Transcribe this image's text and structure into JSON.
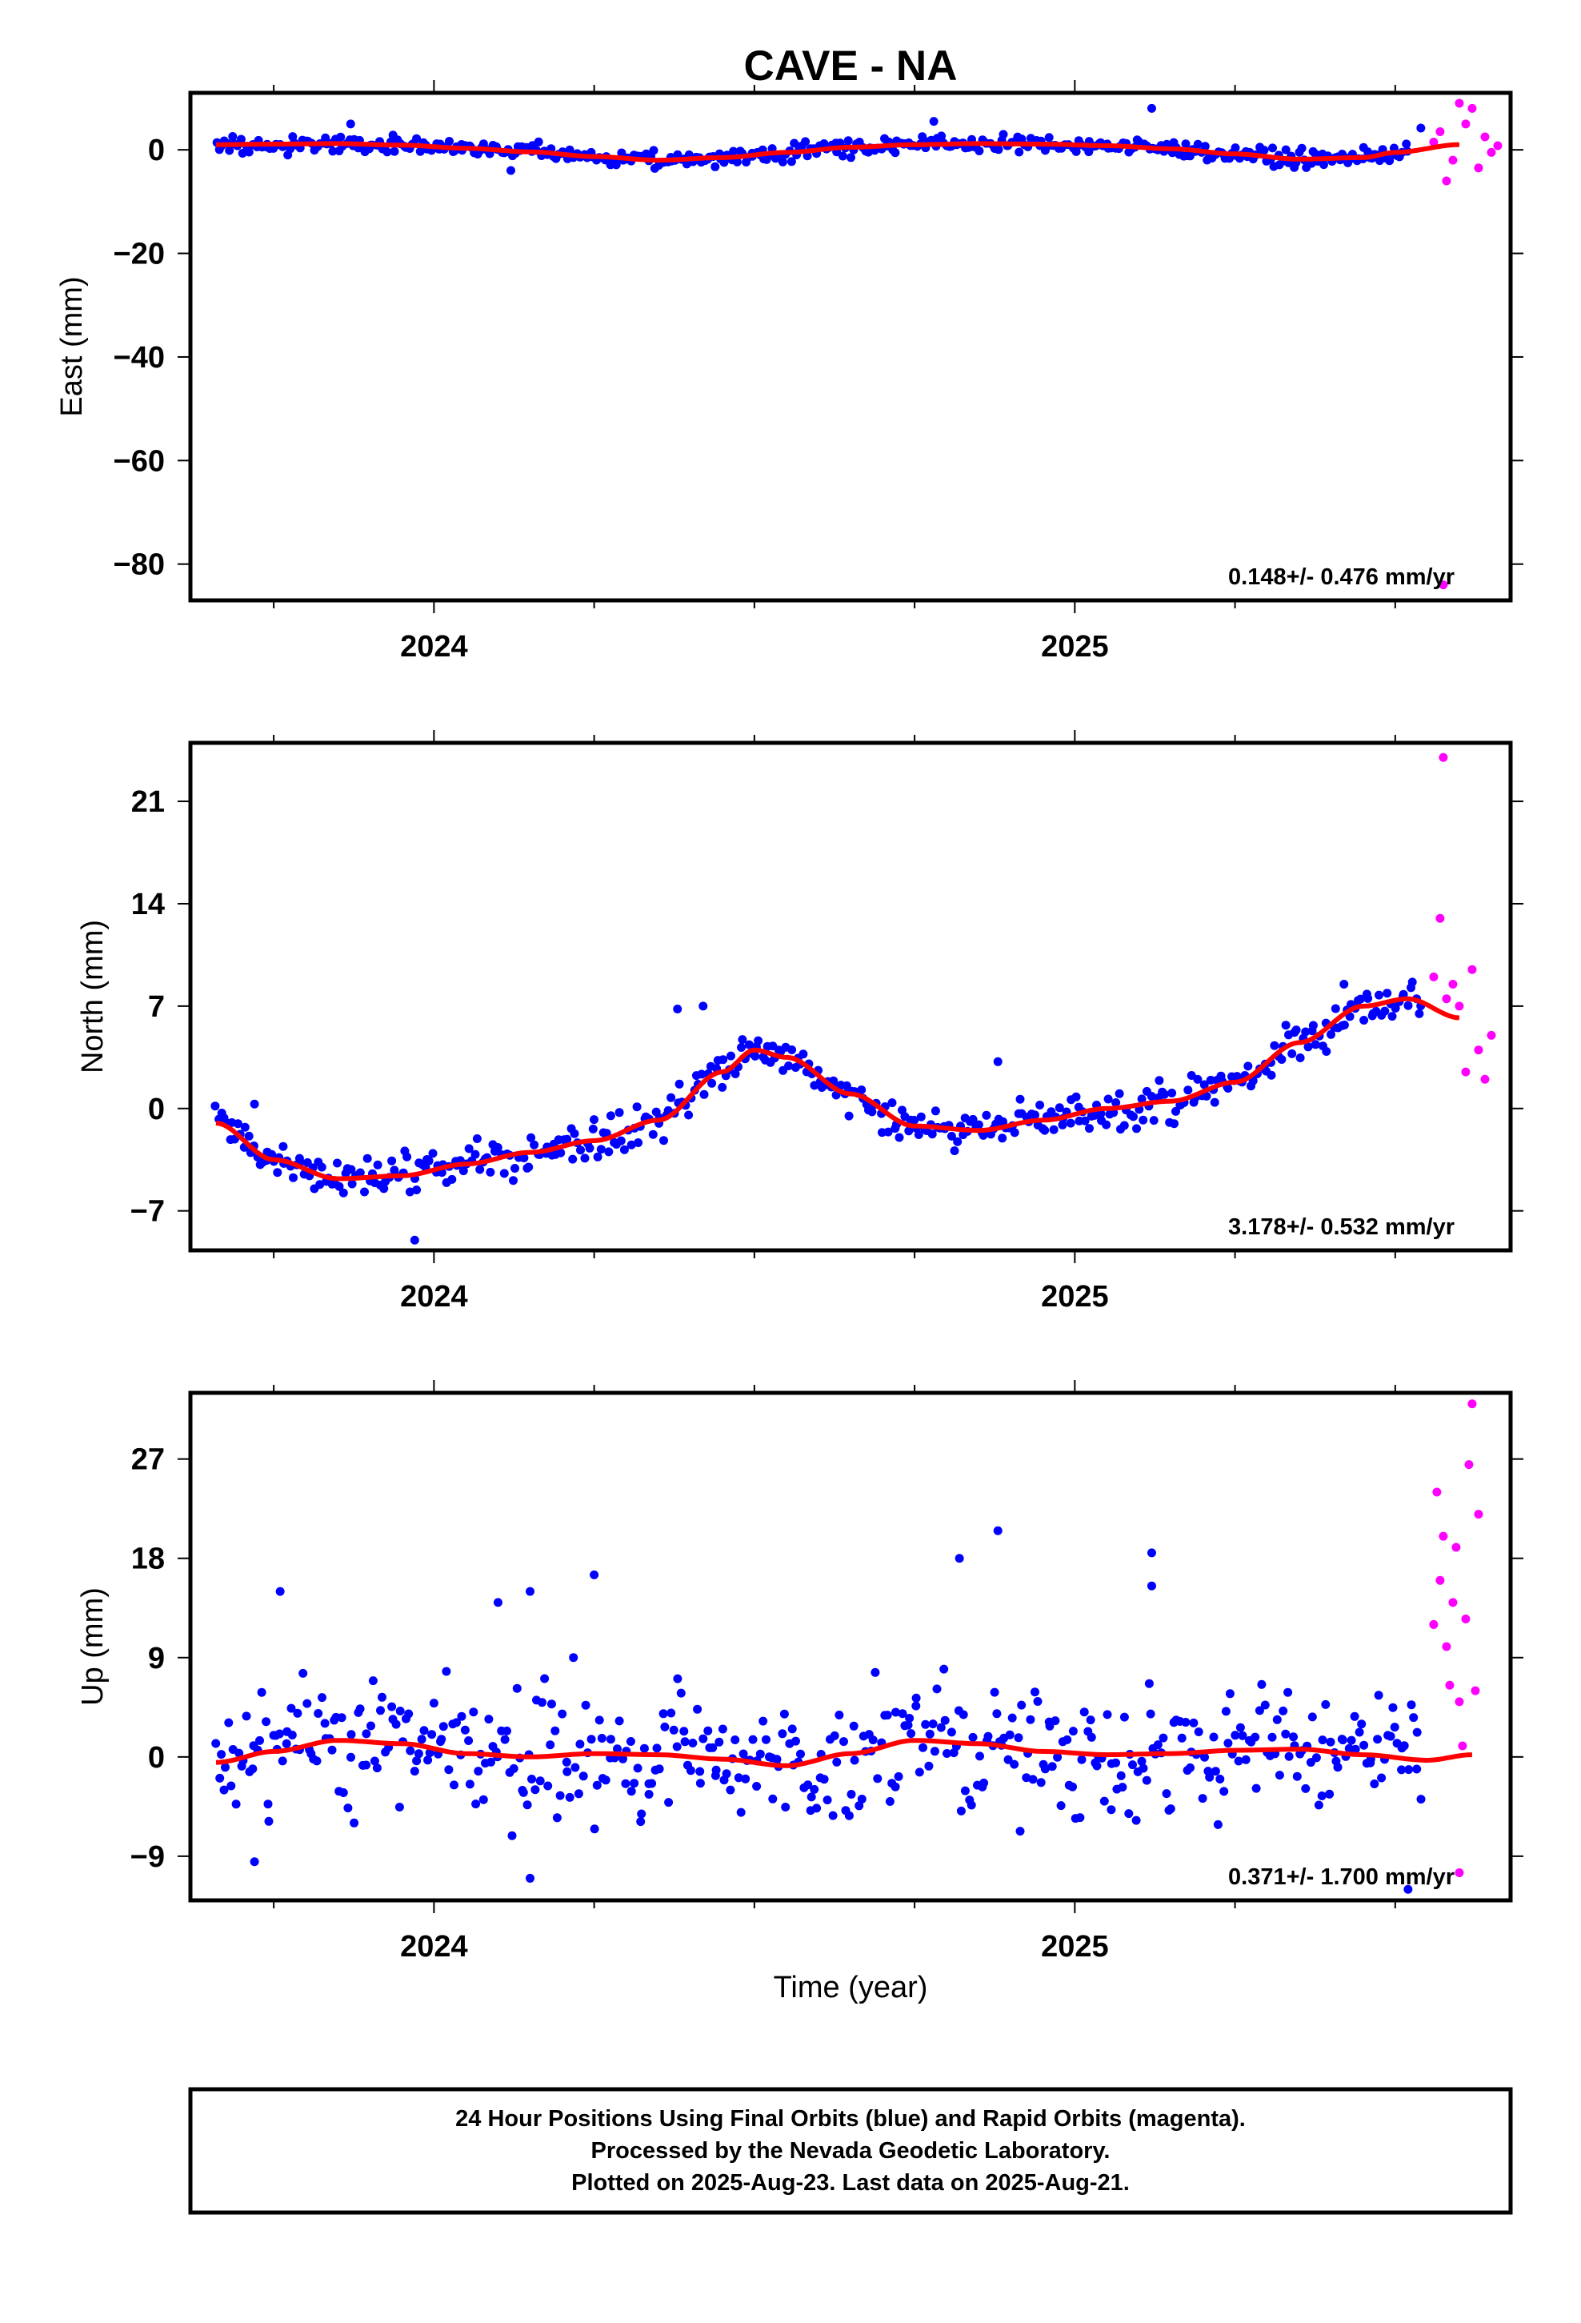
{
  "title": "CAVE - NA",
  "xlabel": "Time (year)",
  "footer": {
    "line1": "24 Hour Positions Using Final Orbits (blue) and Rapid Orbits (magenta).",
    "line2": "Processed by the Nevada Geodetic Laboratory.",
    "line3": "Plotted on 2025-Aug-23. Last data on 2025-Aug-21."
  },
  "colors": {
    "final": "#0000ff",
    "rapid": "#ff00ff",
    "fit": "#ff0000"
  },
  "chart_data": [
    {
      "type": "scatter",
      "component": "east",
      "ylabel": "East (mm)",
      "rate": "0.148+/- 0.476 mm/yr",
      "xlim": [
        2023.62,
        2025.68
      ],
      "ylim": [
        -87,
        11
      ],
      "x_major_ticks": [
        2024,
        2025
      ],
      "x_minor_ticks": [
        2023.75,
        2024.25,
        2024.5,
        2024.75,
        2025.25,
        2025.5
      ],
      "y_ticks": [
        0,
        -20,
        -40,
        -60,
        -80
      ],
      "y_tick_labels": [
        "0",
        "−20",
        "−40",
        "−60",
        "−80"
      ],
      "trend": {
        "x": [
          2023.66,
          2023.75,
          2023.85,
          2023.95,
          2024.05,
          2024.15,
          2024.25,
          2024.35,
          2024.45,
          2024.55,
          2024.65,
          2024.75,
          2024.85,
          2024.95,
          2025.05,
          2025.15,
          2025.25,
          2025.35,
          2025.45,
          2025.5,
          2025.6
        ],
        "y": [
          1.0,
          1.1,
          1.2,
          0.9,
          0.3,
          -0.4,
          -1.3,
          -2.0,
          -1.5,
          -0.5,
          0.5,
          1.0,
          1.2,
          1.1,
          0.8,
          0.2,
          -0.8,
          -1.8,
          -1.5,
          -0.5,
          1.0
        ]
      },
      "final_noise": 1.1,
      "final_count": 440,
      "final_range": [
        2023.66,
        2025.52
      ],
      "final_extra": [
        {
          "x": 2024.78,
          "y": 5.5
        },
        {
          "x": 2025.12,
          "y": 8.0
        },
        {
          "x": 2025.54,
          "y": 4.2
        },
        {
          "x": 2024.12,
          "y": -4.0
        },
        {
          "x": 2023.87,
          "y": 5.0
        }
      ],
      "rapid": [
        {
          "x": 2025.56,
          "y": 1.5
        },
        {
          "x": 2025.57,
          "y": 3.5
        },
        {
          "x": 2025.58,
          "y": -6.0
        },
        {
          "x": 2025.59,
          "y": -2.0
        },
        {
          "x": 2025.6,
          "y": 9.0
        },
        {
          "x": 2025.61,
          "y": 5.0
        },
        {
          "x": 2025.62,
          "y": 8.0
        },
        {
          "x": 2025.63,
          "y": -3.5
        },
        {
          "x": 2025.64,
          "y": 2.5
        },
        {
          "x": 2025.65,
          "y": -0.5
        },
        {
          "x": 2025.66,
          "y": 0.8
        },
        {
          "x": 2025.575,
          "y": -84.0
        }
      ]
    },
    {
      "type": "scatter",
      "component": "north",
      "ylabel": "North (mm)",
      "rate": "3.178+/- 0.532 mm/yr",
      "xlim": [
        2023.62,
        2025.68
      ],
      "ylim": [
        -9.7,
        25
      ],
      "x_major_ticks": [
        2024,
        2025
      ],
      "x_minor_ticks": [
        2023.75,
        2024.25,
        2024.5,
        2024.75,
        2025.25,
        2025.5
      ],
      "y_ticks": [
        21,
        14,
        7,
        0,
        -7
      ],
      "y_tick_labels": [
        "21",
        "14",
        "7",
        "0",
        "−7"
      ],
      "trend": {
        "x": [
          2023.66,
          2023.75,
          2023.85,
          2023.95,
          2024.05,
          2024.15,
          2024.25,
          2024.35,
          2024.45,
          2024.5,
          2024.55,
          2024.65,
          2024.75,
          2024.85,
          2024.95,
          2025.05,
          2025.15,
          2025.25,
          2025.35,
          2025.45,
          2025.52,
          2025.6
        ],
        "y": [
          -1.0,
          -3.5,
          -4.8,
          -4.6,
          -3.8,
          -3.0,
          -2.2,
          -0.8,
          2.5,
          4.0,
          3.5,
          1.0,
          -1.2,
          -1.5,
          -0.8,
          0.0,
          0.5,
          1.8,
          4.5,
          7.0,
          7.5,
          6.2
        ]
      },
      "final_noise": 1.0,
      "final_count": 440,
      "final_range": [
        2023.66,
        2025.54
      ],
      "final_extra": [
        {
          "x": 2024.38,
          "y": 6.8
        },
        {
          "x": 2024.42,
          "y": 7.0
        },
        {
          "x": 2023.97,
          "y": -9.0
        },
        {
          "x": 2024.88,
          "y": 3.2
        },
        {
          "x": 2023.72,
          "y": 0.3
        },
        {
          "x": 2025.42,
          "y": 8.5
        }
      ],
      "rapid": [
        {
          "x": 2025.56,
          "y": 9.0
        },
        {
          "x": 2025.57,
          "y": 13.0
        },
        {
          "x": 2025.575,
          "y": 24.0
        },
        {
          "x": 2025.58,
          "y": 7.5
        },
        {
          "x": 2025.59,
          "y": 8.5
        },
        {
          "x": 2025.6,
          "y": 7.0
        },
        {
          "x": 2025.61,
          "y": 2.5
        },
        {
          "x": 2025.62,
          "y": 9.5
        },
        {
          "x": 2025.63,
          "y": 4.0
        },
        {
          "x": 2025.64,
          "y": 2.0
        },
        {
          "x": 2025.65,
          "y": 5.0
        }
      ]
    },
    {
      "type": "scatter",
      "component": "up",
      "ylabel": "Up (mm)",
      "rate": "0.371+/- 1.700 mm/yr",
      "xlim": [
        2023.62,
        2025.68
      ],
      "ylim": [
        -13,
        33
      ],
      "x_major_ticks": [
        2024,
        2025
      ],
      "x_minor_ticks": [
        2023.75,
        2024.25,
        2024.5,
        2024.75,
        2025.25,
        2025.5
      ],
      "y_ticks": [
        27,
        18,
        9,
        0,
        -9
      ],
      "y_tick_labels": [
        "27",
        "18",
        "9",
        "0",
        "−9"
      ],
      "trend": {
        "x": [
          2023.66,
          2023.75,
          2023.85,
          2023.95,
          2024.05,
          2024.15,
          2024.25,
          2024.35,
          2024.45,
          2024.55,
          2024.65,
          2024.75,
          2024.85,
          2024.95,
          2025.05,
          2025.15,
          2025.25,
          2025.35,
          2025.45,
          2025.55,
          2025.62
        ],
        "y": [
          -0.5,
          0.5,
          1.5,
          1.2,
          0.3,
          0.0,
          0.3,
          0.2,
          -0.2,
          -0.8,
          0.3,
          1.5,
          1.2,
          0.5,
          0.2,
          0.3,
          0.6,
          0.7,
          0.2,
          -0.3,
          0.2
        ]
      },
      "final_noise": 4.3,
      "final_count": 470,
      "final_range": [
        2023.66,
        2025.54
      ],
      "final_extra": [
        {
          "x": 2023.76,
          "y": 15.0
        },
        {
          "x": 2024.1,
          "y": 14.0
        },
        {
          "x": 2024.15,
          "y": 15.0
        },
        {
          "x": 2024.25,
          "y": 16.5
        },
        {
          "x": 2024.82,
          "y": 18.0
        },
        {
          "x": 2024.88,
          "y": 20.5
        },
        {
          "x": 2025.12,
          "y": 18.5
        },
        {
          "x": 2025.12,
          "y": 15.5
        },
        {
          "x": 2024.15,
          "y": -11.0
        },
        {
          "x": 2023.72,
          "y": -9.5
        },
        {
          "x": 2025.52,
          "y": -12.0
        }
      ],
      "rapid": [
        {
          "x": 2025.56,
          "y": 12.0
        },
        {
          "x": 2025.565,
          "y": 24.0
        },
        {
          "x": 2025.57,
          "y": 16.0
        },
        {
          "x": 2025.575,
          "y": 20.0
        },
        {
          "x": 2025.58,
          "y": 10.0
        },
        {
          "x": 2025.585,
          "y": 6.5
        },
        {
          "x": 2025.59,
          "y": 14.0
        },
        {
          "x": 2025.595,
          "y": 19.0
        },
        {
          "x": 2025.6,
          "y": -10.5
        },
        {
          "x": 2025.605,
          "y": 1.0
        },
        {
          "x": 2025.61,
          "y": 12.5
        },
        {
          "x": 2025.615,
          "y": 26.5
        },
        {
          "x": 2025.62,
          "y": 32.0
        },
        {
          "x": 2025.625,
          "y": 6.0
        },
        {
          "x": 2025.63,
          "y": 22.0
        },
        {
          "x": 2025.6,
          "y": 5.0
        }
      ]
    }
  ]
}
